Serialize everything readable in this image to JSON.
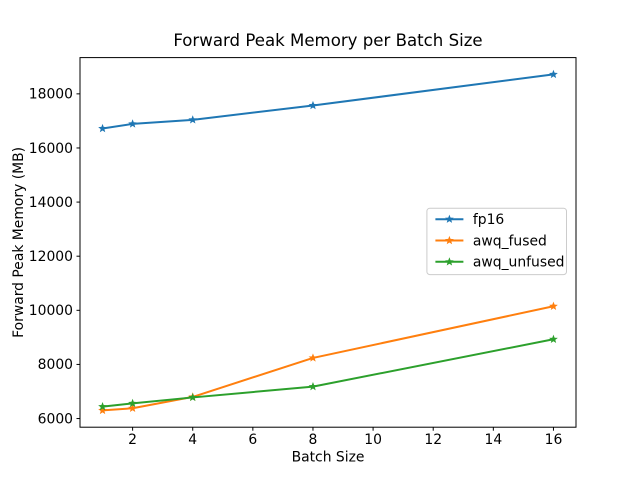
{
  "chart_data": {
    "type": "line",
    "title": "Forward Peak Memory per Batch Size",
    "xlabel": "Batch Size",
    "ylabel": "Forward Peak Memory (MB)",
    "x": [
      1,
      2,
      4,
      8,
      16
    ],
    "series": [
      {
        "name": "fp16",
        "color": "#1f77b4",
        "values": [
          16720,
          16890,
          17040,
          17570,
          18720
        ]
      },
      {
        "name": "awq_fused",
        "color": "#ff7f0e",
        "values": [
          6300,
          6380,
          6800,
          8240,
          10150
        ]
      },
      {
        "name": "awq_unfused",
        "color": "#2ca02c",
        "values": [
          6440,
          6560,
          6780,
          7180,
          8930
        ]
      }
    ],
    "marker": "star",
    "xlim": [
      0.25,
      16.75
    ],
    "ylim": [
      5680,
      19340
    ],
    "xticks": [
      2,
      4,
      6,
      8,
      10,
      12,
      14,
      16
    ],
    "yticks": [
      6000,
      8000,
      10000,
      12000,
      14000,
      16000,
      18000
    ],
    "grid": false,
    "legend": {
      "position": "right-center",
      "entries": [
        "fp16",
        "awq_fused",
        "awq_unfused"
      ],
      "border_color": "#cccccc",
      "background": "#ffffff"
    },
    "colors": {
      "background": "#ffffff",
      "spine": "#000000",
      "tick": "#000000"
    }
  }
}
